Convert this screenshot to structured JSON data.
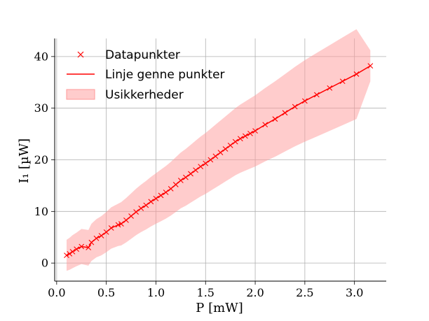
{
  "chart_data": {
    "type": "line",
    "xlabel": "P [mW]",
    "ylabel": "I₁ [µW]",
    "xlim": [
      -0.02,
      3.32
    ],
    "ylim": [
      -3.5,
      43.5
    ],
    "xticks": [
      0.0,
      0.5,
      1.0,
      1.5,
      2.0,
      2.5,
      3.0
    ],
    "xtick_labels": [
      "0.0",
      "0.5",
      "1.0",
      "1.5",
      "2.0",
      "2.5",
      "3.0"
    ],
    "yticks": [
      0,
      10,
      20,
      30,
      40
    ],
    "ytick_labels": [
      "0",
      "10",
      "20",
      "30",
      "40"
    ],
    "grid": true,
    "legend_position": "top-left",
    "colors": {
      "series": "#ff0000",
      "band": "#ff9999"
    },
    "series": [
      {
        "name": "Datapunkter",
        "kind": "marker",
        "x": [
          0.1,
          0.13,
          0.16,
          0.2,
          0.25,
          0.32,
          0.35,
          0.4,
          0.45,
          0.5,
          0.55,
          0.62,
          0.65,
          0.7,
          0.75,
          0.8,
          0.85,
          0.9,
          0.95,
          1.0,
          1.05,
          1.1,
          1.15,
          1.2,
          1.25,
          1.3,
          1.35,
          1.4,
          1.45,
          1.5,
          1.55,
          1.6,
          1.65,
          1.7,
          1.75,
          1.8,
          1.85,
          1.9,
          1.95,
          2.0,
          2.1,
          2.2,
          2.3,
          2.4,
          2.5,
          2.62,
          2.75,
          2.88,
          3.02,
          3.16
        ],
        "y": [
          1.5,
          1.8,
          2.2,
          2.7,
          3.2,
          3.0,
          4.0,
          4.8,
          5.3,
          6.0,
          6.8,
          7.4,
          7.6,
          8.3,
          9.1,
          9.9,
          10.6,
          11.2,
          11.9,
          12.5,
          13.1,
          13.7,
          14.4,
          15.2,
          16.0,
          16.6,
          17.3,
          18.0,
          18.7,
          19.3,
          20.0,
          20.7,
          21.4,
          22.1,
          22.8,
          23.5,
          24.1,
          24.6,
          25.1,
          25.6,
          26.8,
          27.9,
          29.1,
          30.3,
          31.4,
          32.6,
          33.9,
          35.2,
          36.6,
          38.2
        ]
      },
      {
        "name": "Linje genne punkter",
        "kind": "line",
        "x": [
          0.1,
          0.13,
          0.16,
          0.2,
          0.25,
          0.32,
          0.35,
          0.4,
          0.45,
          0.5,
          0.55,
          0.62,
          0.65,
          0.7,
          0.75,
          0.8,
          0.85,
          0.9,
          0.95,
          1.0,
          1.05,
          1.1,
          1.15,
          1.2,
          1.25,
          1.3,
          1.35,
          1.4,
          1.45,
          1.5,
          1.55,
          1.6,
          1.65,
          1.7,
          1.75,
          1.8,
          1.85,
          1.9,
          1.95,
          2.0,
          2.1,
          2.2,
          2.3,
          2.4,
          2.5,
          2.62,
          2.75,
          2.88,
          3.02,
          3.16
        ],
        "y": [
          1.5,
          1.8,
          2.2,
          2.7,
          3.2,
          3.0,
          4.0,
          4.8,
          5.3,
          6.0,
          6.8,
          7.4,
          7.6,
          8.3,
          9.1,
          9.9,
          10.6,
          11.2,
          11.9,
          12.5,
          13.1,
          13.7,
          14.4,
          15.2,
          16.0,
          16.6,
          17.3,
          18.0,
          18.7,
          19.3,
          20.0,
          20.7,
          21.4,
          22.1,
          22.8,
          23.5,
          24.1,
          24.6,
          25.1,
          25.6,
          26.8,
          27.9,
          29.1,
          30.3,
          31.4,
          32.6,
          33.9,
          35.2,
          36.6,
          38.2
        ]
      },
      {
        "name": "Usikkerheder",
        "kind": "band",
        "x": [
          0.1,
          0.13,
          0.16,
          0.2,
          0.25,
          0.32,
          0.35,
          0.4,
          0.45,
          0.5,
          0.55,
          0.62,
          0.65,
          0.7,
          0.75,
          0.8,
          0.85,
          0.9,
          0.95,
          1.0,
          1.05,
          1.1,
          1.15,
          1.2,
          1.25,
          1.3,
          1.35,
          1.4,
          1.45,
          1.5,
          1.55,
          1.6,
          1.65,
          1.7,
          1.75,
          1.8,
          1.85,
          1.9,
          1.95,
          2.0,
          2.1,
          2.2,
          2.3,
          2.4,
          2.5,
          2.62,
          2.75,
          2.88,
          3.02,
          3.16
        ],
        "lower": [
          -1.5,
          -1.3,
          -1.0,
          -0.6,
          -0.2,
          -0.5,
          0.4,
          1.1,
          1.5,
          2.1,
          2.8,
          3.3,
          3.4,
          4.0,
          4.7,
          5.4,
          6.0,
          6.5,
          7.1,
          7.6,
          8.1,
          8.6,
          9.2,
          9.9,
          10.6,
          11.1,
          11.7,
          12.3,
          12.9,
          13.4,
          14.0,
          14.6,
          15.2,
          15.8,
          16.4,
          17.0,
          17.5,
          17.9,
          18.3,
          18.7,
          19.7,
          20.6,
          21.6,
          22.6,
          23.5,
          24.5,
          25.6,
          26.7,
          27.9,
          35.2
        ],
        "upper": [
          4.5,
          4.9,
          5.4,
          5.9,
          6.6,
          6.4,
          7.6,
          8.5,
          9.1,
          9.9,
          10.8,
          11.5,
          11.8,
          12.6,
          13.5,
          14.4,
          15.2,
          15.9,
          16.7,
          17.4,
          18.1,
          18.8,
          19.6,
          20.5,
          21.4,
          22.1,
          22.9,
          23.7,
          24.5,
          25.2,
          26.0,
          26.8,
          27.6,
          28.4,
          29.2,
          30.0,
          30.7,
          31.3,
          31.9,
          32.5,
          33.9,
          35.2,
          36.6,
          38.0,
          39.3,
          40.7,
          42.2,
          43.7,
          45.3,
          41.2
        ]
      }
    ]
  }
}
